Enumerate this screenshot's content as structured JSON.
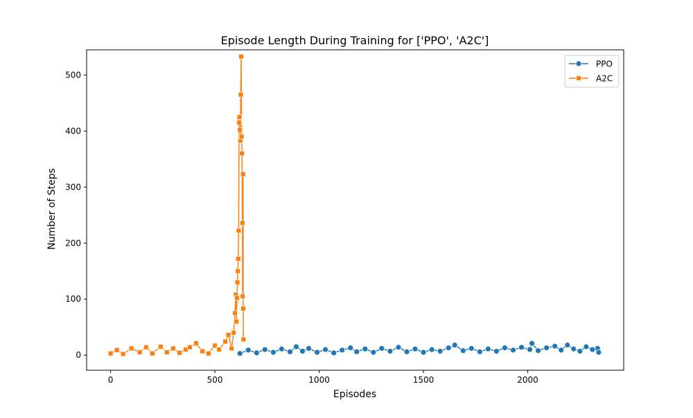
{
  "chart_data": {
    "type": "line",
    "title": "Episode Length During Training for ['PPO', 'A2C']",
    "xlabel": "Episodes",
    "ylabel": "Number of Steps",
    "xlim": [
      -115,
      2460
    ],
    "ylim": [
      -27,
      545
    ],
    "xticks": [
      0,
      500,
      1000,
      1500,
      2000
    ],
    "yticks": [
      0,
      100,
      200,
      300,
      400,
      500
    ],
    "grid": false,
    "legend_position": "top-right",
    "series": [
      {
        "name": "PPO",
        "color": "#1f77b4",
        "marker": "circle",
        "points": [
          [
            620,
            3
          ],
          [
            660,
            9
          ],
          [
            700,
            4
          ],
          [
            740,
            10
          ],
          [
            780,
            5
          ],
          [
            820,
            11
          ],
          [
            860,
            6
          ],
          [
            890,
            15
          ],
          [
            920,
            7
          ],
          [
            950,
            12
          ],
          [
            990,
            5
          ],
          [
            1030,
            10
          ],
          [
            1070,
            4
          ],
          [
            1110,
            9
          ],
          [
            1150,
            13
          ],
          [
            1180,
            6
          ],
          [
            1220,
            11
          ],
          [
            1260,
            5
          ],
          [
            1300,
            12
          ],
          [
            1340,
            7
          ],
          [
            1380,
            14
          ],
          [
            1420,
            6
          ],
          [
            1460,
            11
          ],
          [
            1500,
            5
          ],
          [
            1540,
            10
          ],
          [
            1580,
            7
          ],
          [
            1620,
            13
          ],
          [
            1650,
            18
          ],
          [
            1690,
            8
          ],
          [
            1730,
            12
          ],
          [
            1770,
            6
          ],
          [
            1810,
            11
          ],
          [
            1850,
            7
          ],
          [
            1890,
            13
          ],
          [
            1930,
            9
          ],
          [
            1970,
            14
          ],
          [
            2010,
            10
          ],
          [
            2020,
            21
          ],
          [
            2050,
            8
          ],
          [
            2090,
            13
          ],
          [
            2130,
            16
          ],
          [
            2160,
            9
          ],
          [
            2190,
            18
          ],
          [
            2220,
            11
          ],
          [
            2250,
            7
          ],
          [
            2280,
            15
          ],
          [
            2310,
            10
          ],
          [
            2335,
            12
          ],
          [
            2340,
            5
          ]
        ]
      },
      {
        "name": "A2C",
        "color": "#ff7f0e",
        "marker": "square",
        "points": [
          [
            0,
            3
          ],
          [
            30,
            9
          ],
          [
            60,
            2
          ],
          [
            100,
            12
          ],
          [
            140,
            5
          ],
          [
            170,
            14
          ],
          [
            200,
            3
          ],
          [
            240,
            15
          ],
          [
            270,
            5
          ],
          [
            300,
            12
          ],
          [
            330,
            4
          ],
          [
            360,
            10
          ],
          [
            380,
            14
          ],
          [
            410,
            21
          ],
          [
            440,
            7
          ],
          [
            470,
            3
          ],
          [
            500,
            17
          ],
          [
            520,
            10
          ],
          [
            550,
            24
          ],
          [
            565,
            36
          ],
          [
            580,
            12
          ],
          [
            590,
            40
          ],
          [
            596,
            75
          ],
          [
            600,
            108
          ],
          [
            603,
            60
          ],
          [
            606,
            102
          ],
          [
            608,
            130
          ],
          [
            610,
            150
          ],
          [
            612,
            172
          ],
          [
            614,
            222
          ],
          [
            616,
            415
          ],
          [
            618,
            425
          ],
          [
            620,
            402
          ],
          [
            622,
            383
          ],
          [
            624,
            465
          ],
          [
            626,
            533
          ],
          [
            628,
            390
          ],
          [
            630,
            360
          ],
          [
            632,
            236
          ],
          [
            633,
            105
          ],
          [
            635,
            323
          ],
          [
            636,
            83
          ],
          [
            637,
            28
          ]
        ]
      }
    ]
  }
}
